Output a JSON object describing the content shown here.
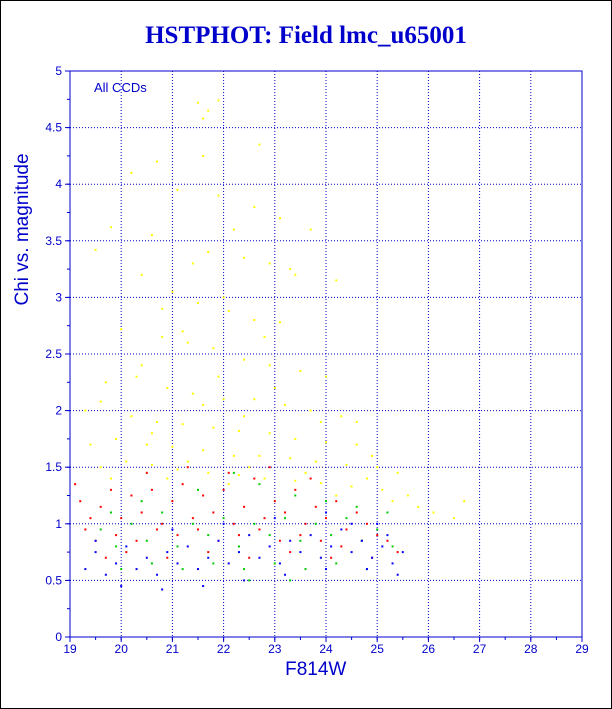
{
  "colors": {
    "axis": "#0000cc",
    "grid": "#0000cc",
    "text": "#0000cc",
    "yellow": "#ffff00",
    "red": "#ff0000",
    "green": "#00cc00",
    "blue": "#0000ff"
  },
  "chart_data": {
    "type": "scatter",
    "title": "HSTPHOT: Field lmc_u65001",
    "xlabel": "F814W",
    "ylabel": "Chi vs. magnitude",
    "annotation": "All CCDs",
    "xlim": [
      19,
      29
    ],
    "ylim": [
      0,
      5
    ],
    "x_ticks": [
      "19",
      "20",
      "21",
      "22",
      "23",
      "24",
      "25",
      "26",
      "27",
      "28",
      "29"
    ],
    "y_ticks": [
      "0",
      "0.5",
      "1",
      "1.5",
      "2",
      "2.5",
      "3",
      "3.5",
      "4",
      "4.5",
      "5"
    ],
    "grid": true,
    "series": [
      {
        "color": "yellow",
        "points": [
          [
            21.5,
            4.72
          ],
          [
            21.7,
            4.65
          ],
          [
            21.6,
            4.58
          ],
          [
            21.9,
            4.74
          ],
          [
            20.7,
            4.2
          ],
          [
            21.6,
            4.25
          ],
          [
            22.7,
            4.35
          ],
          [
            20.2,
            4.1
          ],
          [
            21.1,
            3.95
          ],
          [
            21.9,
            3.9
          ],
          [
            22.6,
            3.8
          ],
          [
            23.1,
            3.7
          ],
          [
            23.7,
            3.6
          ],
          [
            19.8,
            3.62
          ],
          [
            20.6,
            3.55
          ],
          [
            21.7,
            3.4
          ],
          [
            22.4,
            3.35
          ],
          [
            22.9,
            3.3
          ],
          [
            23.3,
            3.25
          ],
          [
            24.2,
            3.15
          ],
          [
            19.5,
            3.42
          ],
          [
            20.4,
            3.2
          ],
          [
            21.0,
            3.05
          ],
          [
            21.5,
            2.95
          ],
          [
            22.1,
            2.88
          ],
          [
            22.6,
            2.8
          ],
          [
            23.1,
            2.78
          ],
          [
            20.0,
            2.72
          ],
          [
            20.8,
            2.65
          ],
          [
            21.3,
            2.6
          ],
          [
            21.8,
            2.55
          ],
          [
            22.4,
            2.45
          ],
          [
            22.9,
            2.4
          ],
          [
            23.5,
            2.35
          ],
          [
            24.0,
            2.3
          ],
          [
            19.7,
            2.25
          ],
          [
            20.3,
            2.3
          ],
          [
            20.9,
            2.2
          ],
          [
            21.4,
            2.15
          ],
          [
            22.0,
            2.1
          ],
          [
            22.6,
            2.1
          ],
          [
            23.2,
            2.05
          ],
          [
            23.7,
            2.0
          ],
          [
            24.3,
            1.95
          ],
          [
            19.6,
            2.08
          ],
          [
            20.2,
            1.95
          ],
          [
            20.7,
            1.9
          ],
          [
            21.2,
            1.88
          ],
          [
            21.8,
            1.85
          ],
          [
            22.3,
            1.82
          ],
          [
            22.9,
            1.8
          ],
          [
            23.4,
            1.75
          ],
          [
            24.0,
            1.72
          ],
          [
            24.6,
            1.7
          ],
          [
            19.9,
            1.75
          ],
          [
            20.5,
            1.7
          ],
          [
            21.0,
            1.68
          ],
          [
            21.6,
            1.65
          ],
          [
            22.2,
            1.6
          ],
          [
            22.7,
            1.6
          ],
          [
            23.3,
            1.58
          ],
          [
            23.8,
            1.55
          ],
          [
            24.4,
            1.52
          ],
          [
            25.0,
            1.5
          ],
          [
            20.1,
            1.55
          ],
          [
            20.6,
            1.52
          ],
          [
            21.1,
            1.48
          ],
          [
            21.7,
            1.45
          ],
          [
            22.3,
            1.43
          ],
          [
            22.8,
            1.4
          ],
          [
            23.4,
            1.38
          ],
          [
            23.9,
            1.36
          ],
          [
            24.5,
            1.33
          ],
          [
            25.1,
            1.3
          ],
          [
            25.6,
            1.25
          ],
          [
            26.1,
            1.1
          ],
          [
            26.5,
            1.05
          ],
          [
            25.8,
            1.15
          ],
          [
            26.7,
            1.2
          ],
          [
            24.8,
            1.4
          ],
          [
            23.6,
            1.45
          ],
          [
            22.5,
            1.5
          ],
          [
            21.3,
            1.55
          ],
          [
            20.9,
            1.4
          ],
          [
            22.1,
            1.35
          ],
          [
            24.2,
            1.25
          ],
          [
            25.3,
            1.2
          ],
          [
            19.4,
            1.7
          ],
          [
            19.3,
            2.0
          ],
          [
            19.6,
            1.5
          ],
          [
            20.4,
            2.4
          ],
          [
            21.2,
            2.7
          ],
          [
            22.0,
            3.0
          ],
          [
            22.8,
            2.65
          ],
          [
            23.0,
            2.2
          ],
          [
            24.6,
            1.9
          ],
          [
            25.4,
            1.45
          ],
          [
            21.9,
            2.3
          ],
          [
            20.8,
            2.9
          ],
          [
            21.4,
            3.3
          ],
          [
            22.2,
            3.6
          ],
          [
            23.4,
            3.2
          ],
          [
            24.9,
            1.6
          ],
          [
            23.9,
            1.9
          ],
          [
            22.4,
            1.95
          ],
          [
            21.6,
            2.05
          ],
          [
            20.6,
            1.8
          ],
          [
            19.8,
            1.4
          ]
        ]
      },
      {
        "color": "red",
        "points": [
          [
            19.1,
            1.35
          ],
          [
            19.2,
            1.2
          ],
          [
            19.4,
            1.05
          ],
          [
            19.3,
            0.95
          ],
          [
            19.6,
            1.15
          ],
          [
            19.8,
            1.3
          ],
          [
            20.0,
            1.05
          ],
          [
            20.2,
            1.25
          ],
          [
            20.4,
            1.1
          ],
          [
            20.6,
            1.3
          ],
          [
            20.8,
            1.0
          ],
          [
            21.0,
            1.2
          ],
          [
            21.2,
            1.35
          ],
          [
            21.4,
            1.05
          ],
          [
            21.6,
            1.25
          ],
          [
            21.8,
            1.1
          ],
          [
            22.0,
            1.3
          ],
          [
            22.2,
            1.0
          ],
          [
            22.4,
            1.15
          ],
          [
            22.6,
            1.4
          ],
          [
            22.8,
            1.05
          ],
          [
            23.0,
            1.2
          ],
          [
            23.2,
            1.1
          ],
          [
            23.4,
            1.3
          ],
          [
            23.6,
            1.0
          ],
          [
            23.8,
            1.15
          ],
          [
            24.0,
            1.05
          ],
          [
            24.2,
            1.2
          ],
          [
            24.4,
            0.95
          ],
          [
            24.6,
            1.1
          ],
          [
            24.8,
            1.0
          ],
          [
            25.0,
            0.9
          ],
          [
            25.2,
            0.85
          ],
          [
            25.4,
            0.75
          ],
          [
            19.5,
            0.85
          ],
          [
            19.9,
            0.9
          ],
          [
            20.3,
            0.85
          ],
          [
            20.7,
            0.95
          ],
          [
            21.1,
            0.9
          ],
          [
            21.5,
            0.95
          ],
          [
            21.9,
            0.85
          ],
          [
            22.3,
            0.9
          ],
          [
            22.7,
            0.95
          ],
          [
            23.1,
            0.85
          ],
          [
            23.5,
            0.9
          ],
          [
            23.9,
            0.85
          ],
          [
            24.3,
            0.8
          ],
          [
            24.7,
            0.85
          ],
          [
            20.5,
            1.45
          ],
          [
            21.3,
            1.5
          ],
          [
            22.1,
            1.45
          ],
          [
            22.9,
            1.5
          ],
          [
            23.7,
            1.4
          ],
          [
            19.7,
            0.7
          ],
          [
            20.1,
            0.75
          ],
          [
            20.9,
            0.7
          ],
          [
            21.7,
            0.75
          ],
          [
            22.5,
            0.7
          ],
          [
            23.3,
            0.75
          ],
          [
            24.1,
            0.7
          ],
          [
            24.9,
            0.7
          ]
        ]
      },
      {
        "color": "green",
        "points": [
          [
            19.6,
            0.95
          ],
          [
            19.9,
            0.8
          ],
          [
            20.2,
            1.0
          ],
          [
            20.5,
            0.85
          ],
          [
            20.8,
            1.1
          ],
          [
            21.1,
            0.8
          ],
          [
            21.4,
            1.0
          ],
          [
            21.7,
            0.9
          ],
          [
            22.0,
            1.05
          ],
          [
            22.3,
            0.8
          ],
          [
            22.6,
            1.0
          ],
          [
            22.9,
            0.9
          ],
          [
            23.2,
            1.05
          ],
          [
            23.5,
            0.85
          ],
          [
            23.8,
            1.0
          ],
          [
            24.1,
            0.9
          ],
          [
            24.4,
            1.05
          ],
          [
            24.7,
            0.85
          ],
          [
            25.0,
            0.95
          ],
          [
            25.3,
            0.8
          ],
          [
            20.0,
            0.6
          ],
          [
            20.6,
            0.65
          ],
          [
            21.2,
            0.6
          ],
          [
            21.8,
            0.65
          ],
          [
            22.4,
            0.6
          ],
          [
            23.0,
            0.65
          ],
          [
            23.6,
            0.6
          ],
          [
            24.2,
            0.65
          ],
          [
            24.8,
            0.6
          ],
          [
            21.5,
            1.3
          ],
          [
            22.7,
            1.35
          ],
          [
            23.4,
            1.25
          ],
          [
            24.0,
            1.2
          ],
          [
            25.2,
            1.1
          ],
          [
            19.8,
            1.1
          ],
          [
            20.4,
            1.2
          ],
          [
            22.2,
            1.45
          ],
          [
            24.6,
            1.15
          ],
          [
            22.5,
            0.5
          ],
          [
            23.3,
            0.5
          ]
        ]
      },
      {
        "color": "blue",
        "points": [
          [
            19.3,
            0.6
          ],
          [
            19.5,
            0.75
          ],
          [
            19.7,
            0.55
          ],
          [
            19.9,
            0.65
          ],
          [
            20.1,
            0.8
          ],
          [
            20.3,
            0.6
          ],
          [
            20.5,
            0.7
          ],
          [
            20.7,
            0.55
          ],
          [
            20.9,
            0.75
          ],
          [
            21.1,
            0.65
          ],
          [
            21.3,
            0.8
          ],
          [
            21.5,
            0.6
          ],
          [
            21.7,
            0.7
          ],
          [
            21.9,
            0.85
          ],
          [
            22.1,
            0.65
          ],
          [
            22.3,
            0.75
          ],
          [
            22.5,
            0.9
          ],
          [
            22.7,
            0.7
          ],
          [
            22.9,
            0.8
          ],
          [
            23.1,
            0.65
          ],
          [
            23.3,
            0.85
          ],
          [
            23.5,
            0.75
          ],
          [
            23.7,
            0.9
          ],
          [
            23.9,
            0.7
          ],
          [
            24.1,
            0.8
          ],
          [
            24.3,
            0.95
          ],
          [
            24.5,
            0.75
          ],
          [
            24.7,
            0.85
          ],
          [
            24.9,
            0.7
          ],
          [
            25.1,
            0.8
          ],
          [
            25.3,
            0.65
          ],
          [
            25.5,
            0.75
          ],
          [
            20.0,
            0.45
          ],
          [
            20.8,
            0.42
          ],
          [
            21.6,
            0.45
          ],
          [
            22.4,
            0.5
          ],
          [
            23.2,
            0.55
          ],
          [
            24.0,
            0.6
          ],
          [
            24.8,
            0.6
          ],
          [
            25.4,
            0.55
          ],
          [
            22.0,
            1.0
          ],
          [
            23.0,
            1.05
          ],
          [
            24.0,
            1.1
          ],
          [
            24.5,
            1.0
          ],
          [
            25.0,
            1.0
          ],
          [
            25.2,
            0.9
          ],
          [
            21.0,
            0.95
          ],
          [
            19.5,
            0.85
          ]
        ]
      }
    ]
  }
}
